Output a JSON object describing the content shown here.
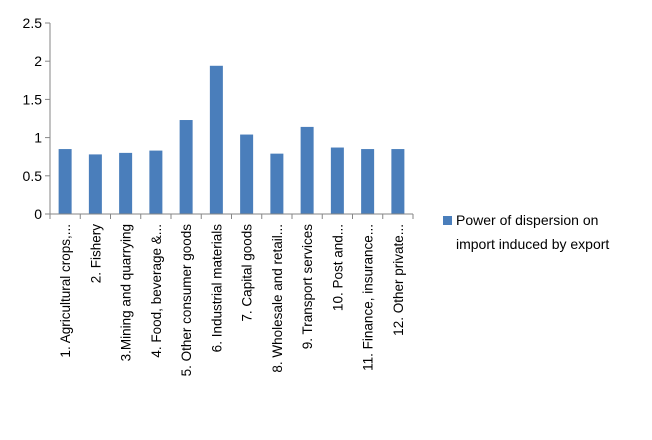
{
  "chart_data": {
    "type": "bar",
    "title": "",
    "xlabel": "",
    "ylabel": "",
    "ylim": [
      0,
      2.5
    ],
    "yticks": [
      0,
      0.5,
      1,
      1.5,
      2,
      2.5
    ],
    "ytick_labels": [
      "0",
      "0.5",
      "1",
      "1.5",
      "2",
      "2.5"
    ],
    "grid": false,
    "legend_position": "right",
    "categories": [
      "1. Agricultural crops,...",
      "2. Fishery",
      "3.Mining and quarrying",
      "4. Food, beverage &...",
      "5. Other consumer goods",
      "6. Industrial materials",
      "7. Capital goods",
      "8. Wholesale and retail...",
      "9. Transport services",
      "10. Post and...",
      "11. Finance, insurance...",
      "12. Other private..."
    ],
    "series": [
      {
        "name": "Power of dispersion on import induced by export",
        "legend_lines": [
          "Power of dispersion on",
          "import induced by export"
        ],
        "color": "#4a7ebb",
        "values": [
          0.85,
          0.78,
          0.8,
          0.83,
          1.23,
          1.94,
          1.04,
          0.79,
          1.14,
          0.87,
          0.85,
          0.85
        ]
      }
    ]
  }
}
